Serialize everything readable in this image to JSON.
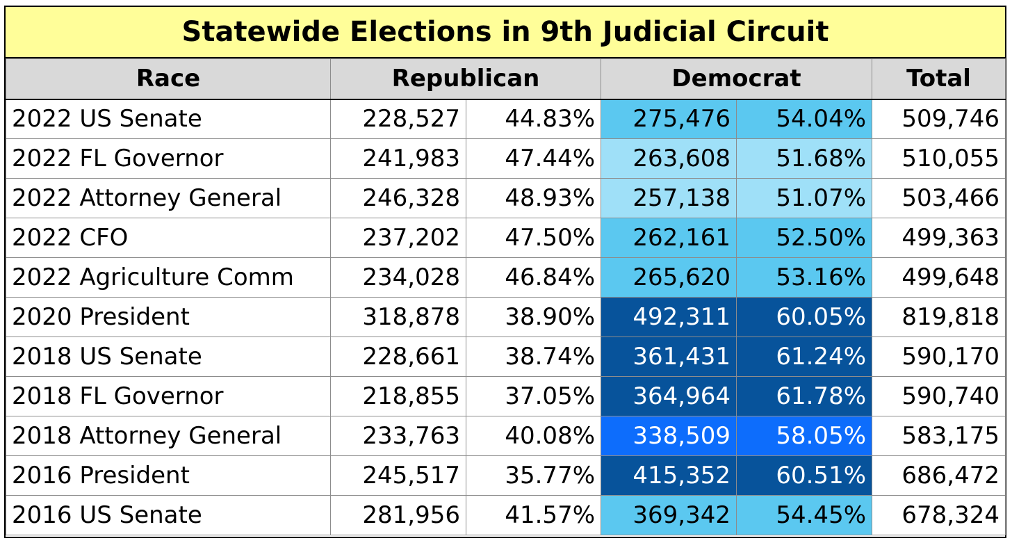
{
  "chart_data": {
    "type": "table",
    "title": "Statewide Elections in 9th Judicial Circuit",
    "columns": [
      "Race",
      "Republican",
      "Democrat",
      "Total"
    ],
    "shade_colors": {
      "light": "#9fe0f8",
      "medium": "#5bc8f0",
      "bright": "#0d6dfc",
      "dark": "#07539b"
    },
    "rows": [
      {
        "race": "2022 US Senate",
        "rep_votes": "228,527",
        "rep_pct": "44.83%",
        "dem_votes": "275,476",
        "dem_pct": "54.04%",
        "total": "509,746",
        "dem_shade": "medium"
      },
      {
        "race": "2022 FL Governor",
        "rep_votes": "241,983",
        "rep_pct": "47.44%",
        "dem_votes": "263,608",
        "dem_pct": "51.68%",
        "total": "510,055",
        "dem_shade": "light"
      },
      {
        "race": "2022 Attorney General",
        "rep_votes": "246,328",
        "rep_pct": "48.93%",
        "dem_votes": "257,138",
        "dem_pct": "51.07%",
        "total": "503,466",
        "dem_shade": "light"
      },
      {
        "race": "2022 CFO",
        "rep_votes": "237,202",
        "rep_pct": "47.50%",
        "dem_votes": "262,161",
        "dem_pct": "52.50%",
        "total": "499,363",
        "dem_shade": "medium"
      },
      {
        "race": "2022 Agriculture Comm",
        "rep_votes": "234,028",
        "rep_pct": "46.84%",
        "dem_votes": "265,620",
        "dem_pct": "53.16%",
        "total": "499,648",
        "dem_shade": "medium"
      },
      {
        "race": "2020 President",
        "rep_votes": "318,878",
        "rep_pct": "38.90%",
        "dem_votes": "492,311",
        "dem_pct": "60.05%",
        "total": "819,818",
        "dem_shade": "dark"
      },
      {
        "race": "2018 US Senate",
        "rep_votes": "228,661",
        "rep_pct": "38.74%",
        "dem_votes": "361,431",
        "dem_pct": "61.24%",
        "total": "590,170",
        "dem_shade": "dark"
      },
      {
        "race": "2018 FL Governor",
        "rep_votes": "218,855",
        "rep_pct": "37.05%",
        "dem_votes": "364,964",
        "dem_pct": "61.78%",
        "total": "590,740",
        "dem_shade": "dark"
      },
      {
        "race": "2018 Attorney General",
        "rep_votes": "233,763",
        "rep_pct": "40.08%",
        "dem_votes": "338,509",
        "dem_pct": "58.05%",
        "total": "583,175",
        "dem_shade": "bright"
      },
      {
        "race": "2016 President",
        "rep_votes": "245,517",
        "rep_pct": "35.77%",
        "dem_votes": "415,352",
        "dem_pct": "60.51%",
        "total": "686,472",
        "dem_shade": "dark"
      },
      {
        "race": "2016 US Senate",
        "rep_votes": "281,956",
        "rep_pct": "41.57%",
        "dem_votes": "369,342",
        "dem_pct": "54.45%",
        "total": "678,324",
        "dem_shade": "medium"
      }
    ]
  }
}
